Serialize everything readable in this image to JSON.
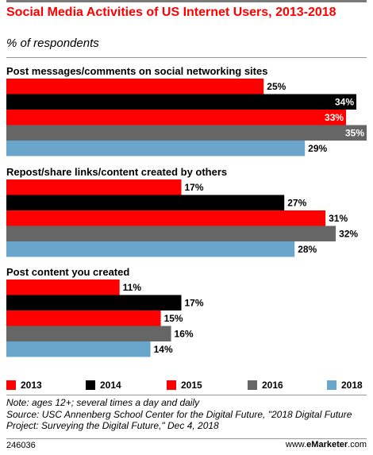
{
  "header": {
    "title": "Social Media Activities of US Internet Users, 2013-2018",
    "subtitle": "% of respondents"
  },
  "colors": {
    "2013": "#ff0000",
    "2014": "#000000",
    "2015": "#ff0000",
    "2016": "#666666",
    "2018": "#6aa6cc"
  },
  "chart_data": {
    "type": "bar",
    "orientation": "horizontal",
    "categories": [
      "Post messages/comments on social networking sites",
      "Repost/share links/content created by others",
      "Post content you created"
    ],
    "series": [
      {
        "name": "2013",
        "values": [
          25,
          17,
          11
        ]
      },
      {
        "name": "2014",
        "values": [
          34,
          27,
          17
        ]
      },
      {
        "name": "2015",
        "values": [
          33,
          31,
          15
        ]
      },
      {
        "name": "2016",
        "values": [
          35,
          32,
          16
        ]
      },
      {
        "name": "2018",
        "values": [
          29,
          28,
          14
        ]
      }
    ],
    "value_suffix": "%",
    "xlim": [
      0,
      35
    ],
    "grid": false,
    "legend_position": "bottom"
  },
  "legend": {
    "items": [
      "2013",
      "2014",
      "2015",
      "2016",
      "2018"
    ]
  },
  "footer": {
    "note": "Note: ages 12+; several times a day and daily",
    "source": "Source: USC Annenberg School Center for the Digital Future, \"2018 Digital Future Project: Surveying the Digital Future,\" Dec 4, 2018",
    "chart_id": "246036",
    "brand_prefix": "www.",
    "brand_name": "eMarketer",
    "brand_suffix": ".com"
  }
}
